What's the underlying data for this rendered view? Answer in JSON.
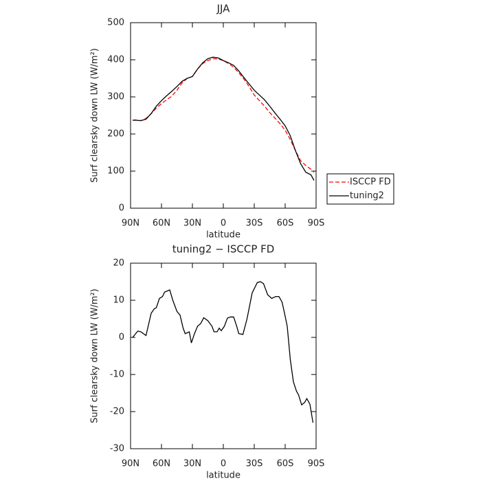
{
  "chart_data": [
    {
      "type": "line",
      "title": "JJA",
      "xlabel": "latitude",
      "ylabel": "Surf clearsky down LW (W/m²)",
      "x": [
        88,
        85,
        80,
        75,
        70,
        65,
        60,
        55,
        50,
        45,
        40,
        35,
        30,
        25,
        20,
        15,
        10,
        5,
        0,
        -5,
        -10,
        -15,
        -20,
        -25,
        -30,
        -35,
        -40,
        -45,
        -50,
        -55,
        -60,
        -65,
        -70,
        -75,
        -80,
        -85,
        -88
      ],
      "series": [
        {
          "name": "ISCCP FD",
          "color": "#ff0000",
          "dash": true,
          "values": [
            237,
            238,
            236,
            242,
            255,
            270,
            282,
            292,
            302,
            318,
            338,
            350,
            355,
            375,
            390,
            398,
            403,
            402,
            398,
            390,
            380,
            365,
            348,
            328,
            305,
            290,
            275,
            258,
            243,
            228,
            210,
            185,
            155,
            128,
            115,
            105,
            97
          ]
        },
        {
          "name": "tuning2",
          "color": "#000000",
          "dash": false,
          "values": [
            237,
            237,
            236,
            240,
            255,
            275,
            290,
            303,
            315,
            328,
            342,
            350,
            355,
            375,
            392,
            403,
            407,
            405,
            398,
            392,
            385,
            370,
            352,
            335,
            318,
            305,
            292,
            275,
            257,
            240,
            222,
            195,
            155,
            120,
            97,
            90,
            75
          ]
        }
      ],
      "xlim": [
        90,
        -90
      ],
      "xticks": [
        {
          "value": 90,
          "label": "90N"
        },
        {
          "value": 60,
          "label": "60N"
        },
        {
          "value": 30,
          "label": "30N"
        },
        0,
        {
          "value": -30,
          "label": "30S"
        },
        {
          "value": -60,
          "label": "60S"
        },
        {
          "value": -90,
          "label": "90S"
        }
      ],
      "ylim": [
        0,
        500
      ],
      "yticks": [
        0,
        100,
        200,
        300,
        400,
        500
      ],
      "legend": "right"
    },
    {
      "type": "line",
      "title": "tuning2 − ISCCP FD",
      "xlabel": "latitude",
      "ylabel": "Surf clearsky down LW (W/m²)",
      "x": [
        88,
        83,
        80,
        75,
        70,
        67,
        65,
        62,
        59,
        57,
        52,
        49,
        45,
        42,
        39,
        37,
        33,
        31,
        28,
        25,
        22,
        19,
        15,
        11,
        9,
        6,
        4,
        2,
        -1,
        -4,
        -7,
        -10,
        -13,
        -15,
        -19,
        -23,
        -28,
        -33,
        -36,
        -39,
        -43,
        -47,
        -49,
        -51,
        -54,
        -57,
        -59,
        -62,
        -65,
        -68,
        -71,
        -73,
        -76,
        -79,
        -81,
        -84,
        -87
      ],
      "series": [
        {
          "name": "tuning2",
          "color": "#000000",
          "dash": false,
          "values": [
            0,
            1.7,
            1.5,
            0.5,
            6.5,
            7.7,
            8,
            10.5,
            11,
            12.2,
            12.8,
            10,
            7,
            6,
            2.5,
            1,
            1.5,
            -1.5,
            1,
            3,
            3.7,
            5.3,
            4.5,
            3,
            1.5,
            1.5,
            2.5,
            1.8,
            3,
            5.2,
            5.5,
            5.5,
            3,
            1,
            0.8,
            5,
            12,
            14.8,
            15,
            14.5,
            11.5,
            10.5,
            10.8,
            11,
            11,
            9.5,
            7,
            3,
            -6,
            -12,
            -14.5,
            -15.5,
            -18.2,
            -17.5,
            -16.5,
            -18,
            -23
          ]
        }
      ],
      "xlim": [
        90,
        -90
      ],
      "xticks": [
        {
          "value": 90,
          "label": "90N"
        },
        {
          "value": 60,
          "label": "60N"
        },
        {
          "value": 30,
          "label": "30N"
        },
        0,
        {
          "value": -30,
          "label": "30S"
        },
        {
          "value": -60,
          "label": "60S"
        },
        {
          "value": -90,
          "label": "90S"
        }
      ],
      "ylim": [
        -30,
        20
      ],
      "yticks": [
        -30,
        -20,
        -10,
        0,
        10,
        20
      ]
    }
  ]
}
